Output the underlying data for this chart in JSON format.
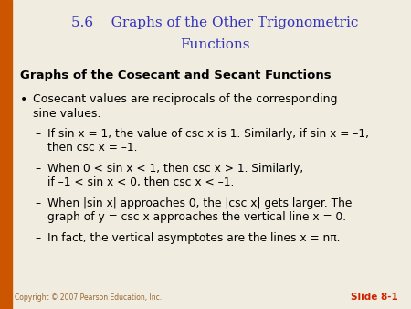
{
  "title_line1": "5.6    Graphs of the Other Trigonometric",
  "title_line2": "Functions",
  "title_color": "#3333BB",
  "subtitle": "Graphs of the Cosecant and Secant Functions",
  "subtitle_color": "#000000",
  "bullet_line1": "Cosecant values are reciprocals of the corresponding",
  "bullet_line2": "sine values.",
  "dash1_line1": "If sin x = 1, the value of csc x is 1. Similarly, if sin x = –1,",
  "dash1_line2": "then csc x = –1.",
  "dash2_line1": "When 0 < sin x < 1, then csc x > 1. Similarly,",
  "dash2_line2": "if –1 < sin x < 0, then csc x < –1.",
  "dash3_line1": "When |sin x| approaches 0, the |csc x| gets larger. The",
  "dash3_line2": "graph of y = csc x approaches the vertical line x = 0.",
  "dash4": "In fact, the vertical asymptotes are the lines x = nπ.",
  "bg_color": "#f0ece0",
  "left_bar_color": "#cc5500",
  "copyright": "Copyright © 2007 Pearson Education, Inc.",
  "slide_label": "Slide 8-1",
  "copyright_color": "#996633",
  "slide_label_color": "#cc2200"
}
